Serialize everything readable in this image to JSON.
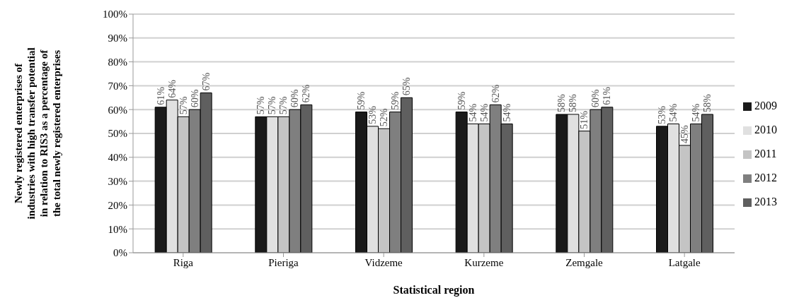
{
  "chart_data": {
    "type": "bar",
    "xlabel": "Statistical region",
    "ylabel": "Newly registered enterprises of\nindustries with high transfer potential\nin relation to RIS3 as a percentage of\nthe total newly registered enterprises",
    "categories": [
      "Riga",
      "Pieriga",
      "Vidzeme",
      "Kurzeme",
      "Zemgale",
      "Latgale"
    ],
    "series": [
      {
        "name": "2009",
        "color": "#1a1a1a",
        "values": [
          61,
          57,
          59,
          59,
          58,
          53
        ],
        "value_labels": [
          "61%",
          "57%",
          "59%",
          "59%",
          "58%",
          "53%"
        ]
      },
      {
        "name": "2010",
        "color": "#e0e0e0",
        "values": [
          64,
          57,
          53,
          54,
          58,
          54
        ],
        "value_labels": [
          "64%",
          "57%",
          "53%",
          "54%",
          "58%",
          "54%"
        ]
      },
      {
        "name": "2011",
        "color": "#c4c4c4",
        "values": [
          57,
          57,
          52,
          54,
          51,
          45
        ],
        "value_labels": [
          "57%",
          "57%",
          "52%",
          "54%",
          "51%",
          "45%"
        ]
      },
      {
        "name": "2012",
        "color": "#7f7f7f",
        "values": [
          60,
          60,
          59,
          62,
          60,
          54
        ],
        "value_labels": [
          "60%",
          "60%",
          "59%",
          "62%",
          "60%",
          "54%"
        ]
      },
      {
        "name": "2013",
        "color": "#5f5f5f",
        "values": [
          67,
          62,
          65,
          54,
          61,
          58
        ],
        "value_labels": [
          "67%",
          "62%",
          "65%",
          "54%",
          "61%",
          "58%"
        ]
      }
    ],
    "ylim": [
      0,
      100
    ],
    "yticks": [
      {
        "value": 0,
        "label": "0%"
      },
      {
        "value": 10,
        "label": "10%"
      },
      {
        "value": 20,
        "label": "20%"
      },
      {
        "value": 30,
        "label": "30%"
      },
      {
        "value": 40,
        "label": "40%"
      },
      {
        "value": 50,
        "label": "50%"
      },
      {
        "value": 60,
        "label": "60%"
      },
      {
        "value": 70,
        "label": "70%"
      },
      {
        "value": 80,
        "label": "80%"
      },
      {
        "value": 90,
        "label": "90%"
      },
      {
        "value": 100,
        "label": "100%"
      }
    ],
    "grid": "y",
    "legend": "right"
  }
}
